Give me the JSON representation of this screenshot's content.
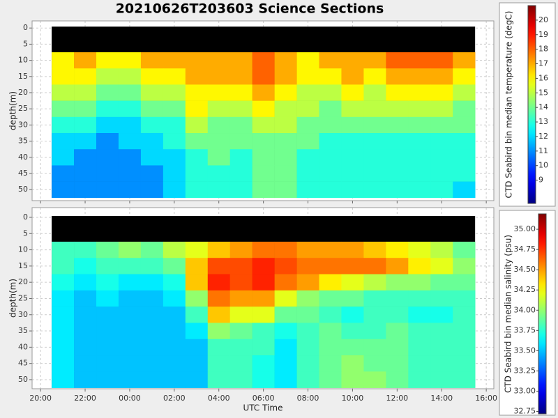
{
  "chart_data": [
    {
      "type": "heatmap",
      "title": "20210626T203603 Science Sections",
      "ylabel": "depth(m)",
      "x": [
        21,
        22,
        23,
        24,
        25,
        26,
        27,
        28,
        29,
        30,
        31,
        32,
        33,
        34,
        35,
        36,
        37,
        38,
        39
      ],
      "y": [
        10,
        15,
        20,
        25,
        30,
        35,
        40,
        45,
        50
      ],
      "z": [
        [
          16,
          17,
          16,
          16,
          17,
          17,
          17,
          17,
          17,
          18,
          17,
          16,
          17,
          17,
          17,
          18,
          18,
          18,
          17
        ],
        [
          16,
          16,
          15,
          15,
          16,
          16,
          17,
          17,
          17,
          18,
          17,
          16,
          16,
          17,
          16,
          17,
          17,
          17,
          16
        ],
        [
          15,
          15,
          14,
          14,
          15,
          15,
          16,
          16,
          16,
          17,
          16,
          15,
          15,
          16,
          15,
          16,
          16,
          16,
          15
        ],
        [
          14,
          14,
          13,
          13,
          14,
          14,
          16,
          15,
          15,
          16,
          15,
          15,
          14,
          15,
          15,
          15,
          15,
          15,
          14
        ],
        [
          13,
          13,
          12,
          12,
          13,
          13,
          15,
          14,
          14,
          15,
          15,
          14,
          14,
          14,
          14,
          14,
          14,
          14,
          14
        ],
        [
          12,
          12,
          11,
          12,
          12,
          13,
          14,
          14,
          14,
          14,
          14,
          14,
          13,
          13,
          13,
          13,
          13,
          13,
          13
        ],
        [
          12,
          11,
          11,
          11,
          12,
          12,
          13,
          14,
          13,
          14,
          14,
          13,
          13,
          13,
          13,
          13,
          13,
          13,
          13
        ],
        [
          11,
          11,
          11,
          11,
          11,
          12,
          13,
          13,
          13,
          14,
          14,
          13,
          13,
          13,
          13,
          13,
          13,
          13,
          13
        ],
        [
          11,
          11,
          11,
          11,
          11,
          12,
          13,
          13,
          13,
          14,
          14,
          13,
          13,
          13,
          13,
          13,
          13,
          13,
          12
        ]
      ],
      "xlim": [
        19.62,
        40.34
      ],
      "xticks": [
        20,
        22,
        24,
        26,
        28,
        30,
        32,
        34,
        36,
        38,
        40
      ],
      "ylim": [
        -2.2,
        53.4
      ],
      "invert_y": true,
      "yticks": [
        0,
        5,
        10,
        15,
        20,
        25,
        30,
        35,
        40,
        45,
        50
      ],
      "grid": true,
      "colorbar": {
        "label": "CTD Seabird bin median temperature (degC)",
        "colormap": "jet",
        "zlim": [
          7.4,
          21.0
        ],
        "ticks": [
          9,
          10,
          11,
          12,
          13,
          14,
          15,
          16,
          17,
          18,
          19,
          20
        ],
        "side": "right"
      }
    },
    {
      "type": "heatmap",
      "xlabel": "UTC Time",
      "ylabel": "depth(m)",
      "x": [
        21,
        22,
        23,
        24,
        25,
        26,
        27,
        28,
        29,
        30,
        31,
        32,
        33,
        34,
        35,
        36,
        37,
        38,
        39
      ],
      "y": [
        10,
        15,
        20,
        25,
        30,
        35,
        40,
        45,
        50
      ],
      "z": [
        [
          33.8,
          33.8,
          33.9,
          34.0,
          33.9,
          34.1,
          34.2,
          34.4,
          34.5,
          34.6,
          34.6,
          34.5,
          34.5,
          34.5,
          34.4,
          34.3,
          34.2,
          34.1,
          33.9
        ],
        [
          33.8,
          33.7,
          33.8,
          33.8,
          33.8,
          33.9,
          34.4,
          34.7,
          34.7,
          34.8,
          34.7,
          34.6,
          34.6,
          34.6,
          34.6,
          34.5,
          34.3,
          34.2,
          34.0
        ],
        [
          33.7,
          33.6,
          33.7,
          33.6,
          33.6,
          33.7,
          34.4,
          34.8,
          34.7,
          34.8,
          34.6,
          34.5,
          34.3,
          34.2,
          34.1,
          34.0,
          34.0,
          33.9,
          33.9
        ],
        [
          33.6,
          33.5,
          33.6,
          33.5,
          33.5,
          33.6,
          34.0,
          34.6,
          34.5,
          34.5,
          34.2,
          34.0,
          33.9,
          33.9,
          33.8,
          33.8,
          33.8,
          33.8,
          33.8
        ],
        [
          33.6,
          33.5,
          33.5,
          33.5,
          33.5,
          33.5,
          33.8,
          34.4,
          34.2,
          34.2,
          33.9,
          33.9,
          33.8,
          33.7,
          33.8,
          33.8,
          33.7,
          33.7,
          33.8
        ],
        [
          33.6,
          33.5,
          33.5,
          33.5,
          33.5,
          33.5,
          33.6,
          34.0,
          33.9,
          33.8,
          33.7,
          33.8,
          33.9,
          33.8,
          33.8,
          33.9,
          33.8,
          33.8,
          33.8
        ],
        [
          33.6,
          33.5,
          33.5,
          33.5,
          33.5,
          33.5,
          33.5,
          33.8,
          33.8,
          33.8,
          33.6,
          33.8,
          33.9,
          33.9,
          33.9,
          33.9,
          33.8,
          33.8,
          33.8
        ],
        [
          33.6,
          33.5,
          33.5,
          33.5,
          33.5,
          33.5,
          33.5,
          33.8,
          33.8,
          33.7,
          33.6,
          33.8,
          33.9,
          34.0,
          33.9,
          33.9,
          33.8,
          33.8,
          33.8
        ],
        [
          33.6,
          33.5,
          33.5,
          33.5,
          33.5,
          33.5,
          33.5,
          33.8,
          33.8,
          33.7,
          33.6,
          33.8,
          33.9,
          34.0,
          34.0,
          33.9,
          33.8,
          33.8,
          33.8
        ]
      ],
      "xlim": [
        19.62,
        40.34
      ],
      "xticks": [
        {
          "value": 20,
          "label": "20:00"
        },
        {
          "value": 22,
          "label": "22:00"
        },
        {
          "value": 24,
          "label": "00:00"
        },
        {
          "value": 26,
          "label": "02:00"
        },
        {
          "value": 28,
          "label": "04:00"
        },
        {
          "value": 30,
          "label": "06:00"
        },
        {
          "value": 32,
          "label": "08:00"
        },
        {
          "value": 34,
          "label": "10:00"
        },
        {
          "value": 36,
          "label": "12:00"
        },
        {
          "value": 38,
          "label": "14:00"
        },
        {
          "value": 40,
          "label": "16:00"
        }
      ],
      "ylim": [
        -3.0,
        52.8
      ],
      "invert_y": true,
      "yticks": [
        0,
        5,
        10,
        15,
        20,
        25,
        30,
        35,
        40,
        45,
        50
      ],
      "grid": true,
      "colorbar": {
        "label": "CTD Seabird bin median salinity (psu)",
        "colormap": "jet",
        "zlim": [
          32.72,
          35.19
        ],
        "ticks": [
          {
            "value": 32.75,
            "label": "32.75"
          },
          {
            "value": 33,
            "label": "33.00"
          },
          {
            "value": 33.25,
            "label": "33.25"
          },
          {
            "value": 33.5,
            "label": "33.50"
          },
          {
            "value": 33.75,
            "label": "33.75"
          },
          {
            "value": 34,
            "label": "34.00"
          },
          {
            "value": 34.25,
            "label": "34.25"
          },
          {
            "value": 34.5,
            "label": "34.50"
          },
          {
            "value": 34.75,
            "label": "34.75"
          },
          {
            "value": 35,
            "label": "35.00"
          }
        ],
        "side": "left"
      }
    }
  ]
}
